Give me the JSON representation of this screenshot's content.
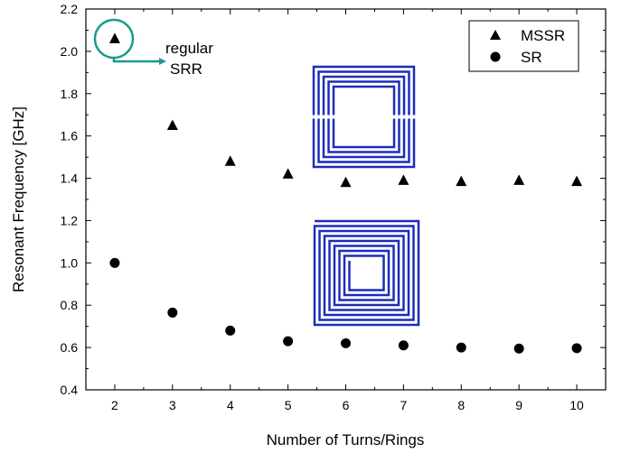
{
  "chart_data": {
    "type": "scatter",
    "title": "",
    "xlabel": "Number of Turns/Rings",
    "ylabel": "Resonant Frequency [GHz]",
    "xlim": [
      1.5,
      10.5
    ],
    "ylim": [
      0.4,
      2.2
    ],
    "x_ticks": [
      "2",
      "3",
      "4",
      "5",
      "6",
      "7",
      "8",
      "9",
      "10"
    ],
    "y_ticks": [
      "0.4",
      "0.6",
      "0.8",
      "1.0",
      "1.2",
      "1.4",
      "1.6",
      "1.8",
      "2.0",
      "2.2"
    ],
    "grid": false,
    "legend_position": "top-right",
    "series": [
      {
        "name": "MSSR",
        "marker": "triangle",
        "color": "#000000",
        "x": [
          2,
          3,
          4,
          5,
          6,
          7,
          8,
          9,
          10
        ],
        "y": [
          2.06,
          1.65,
          1.48,
          1.42,
          1.38,
          1.39,
          1.385,
          1.39,
          1.385
        ]
      },
      {
        "name": "SR",
        "marker": "circle",
        "color": "#000000",
        "x": [
          2,
          3,
          4,
          5,
          6,
          7,
          8,
          9,
          10
        ],
        "y": [
          1.0,
          0.765,
          0.68,
          0.63,
          0.62,
          0.61,
          0.6,
          0.595,
          0.597
        ]
      }
    ],
    "annotation": {
      "text_line1": "regular",
      "text_line2": "SRR",
      "color": "#1a9a8f",
      "target_x": 2,
      "target_y": 2.06
    },
    "insets": [
      {
        "name": "mssr-structure",
        "color": "#1e2db8"
      },
      {
        "name": "sr-structure",
        "color": "#1e2db8"
      }
    ]
  }
}
